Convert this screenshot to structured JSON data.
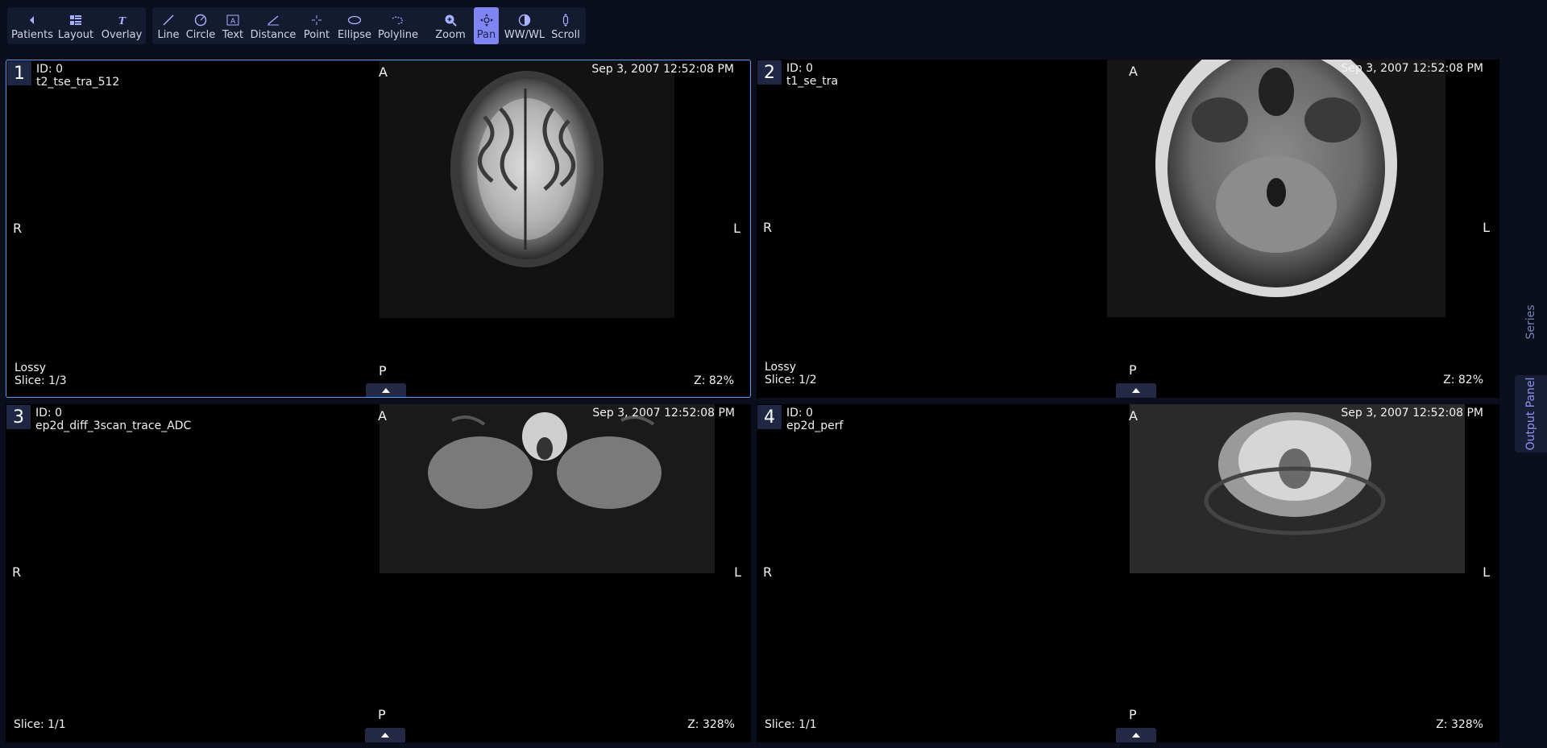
{
  "toolbar": {
    "groups": [
      {
        "items": [
          {
            "label": "Patients",
            "icon": "caret-left-icon"
          },
          {
            "label": "Layout",
            "icon": "grid-icon"
          },
          {
            "label": "Overlay",
            "icon": "text-t-icon"
          }
        ]
      },
      {
        "items": [
          {
            "label": "Line",
            "icon": "line-icon"
          },
          {
            "label": "Circle",
            "icon": "circle-icon"
          },
          {
            "label": "Text",
            "icon": "text-box-icon"
          },
          {
            "label": "Distance",
            "icon": "ruler-icon"
          },
          {
            "label": "Point",
            "icon": "crosshair-icon"
          },
          {
            "label": "Ellipse",
            "icon": "ellipse-icon"
          },
          {
            "label": "Polyline",
            "icon": "polyline-icon"
          },
          {
            "label": "Zoom",
            "icon": "zoom-icon"
          },
          {
            "label": "Pan",
            "icon": "pan-icon",
            "active": true
          },
          {
            "label": "WW/WL",
            "icon": "contrast-icon"
          },
          {
            "label": "Scroll",
            "icon": "scroll-icon"
          }
        ]
      }
    ]
  },
  "viewports": [
    {
      "number": "1",
      "id": "ID: 0",
      "series": "t2_tse_tra_512",
      "date": "Sep 3, 2007 12:52:08 PM",
      "top": "A",
      "left": "R",
      "right": "L",
      "bottom": "P",
      "compression": "Lossy",
      "slice": "Slice: 1/3",
      "zoom": "Z: 82%",
      "active": true
    },
    {
      "number": "2",
      "id": "ID: 0",
      "series": "t1_se_tra",
      "date": "Sep 3, 2007 12:52:08 PM",
      "top": "A",
      "left": "R",
      "right": "L",
      "bottom": "P",
      "compression": "Lossy",
      "slice": "Slice: 1/2",
      "zoom": "Z: 82%"
    },
    {
      "number": "3",
      "id": "ID: 0",
      "series": "ep2d_diff_3scan_trace_ADC",
      "date": "Sep 3, 2007 12:52:08 PM",
      "top": "A",
      "left": "R",
      "right": "L",
      "bottom": "P",
      "compression": "",
      "slice": "Slice: 1/1",
      "zoom": "Z: 328%"
    },
    {
      "number": "4",
      "id": "ID: 0",
      "series": "ep2d_perf",
      "date": "Sep 3, 2007 12:52:08 PM",
      "top": "A",
      "left": "R",
      "right": "L",
      "bottom": "P",
      "compression": "",
      "slice": "Slice: 1/1",
      "zoom": "Z: 328%"
    }
  ],
  "side_panel": {
    "series_tab": "Series",
    "output_tab": "Output Panel"
  },
  "colors": {
    "background": "#0b0e1c",
    "active_tool": "#7f86f4",
    "active_viewport_border": "#5b9df2"
  }
}
